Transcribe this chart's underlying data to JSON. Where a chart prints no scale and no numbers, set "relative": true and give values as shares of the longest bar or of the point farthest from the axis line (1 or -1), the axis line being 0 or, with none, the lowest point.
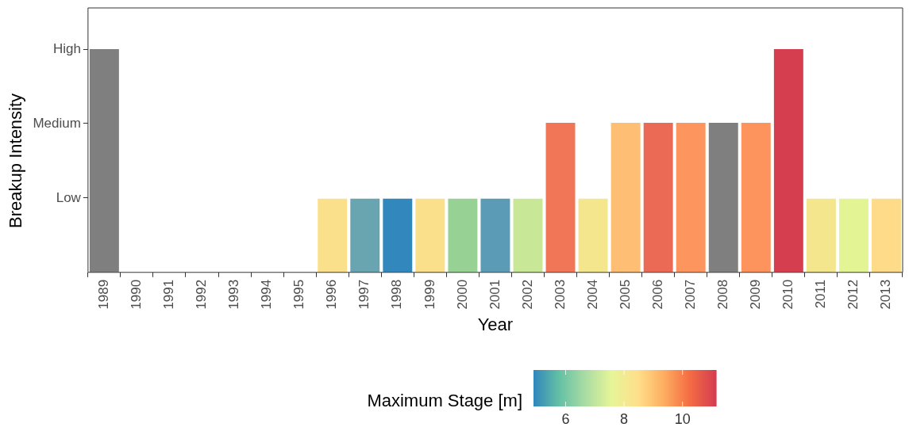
{
  "chart_data": {
    "type": "bar",
    "xlabel": "Year",
    "ylabel": "Breakup Intensity",
    "clabel": "Maximum Stage [m]",
    "categories": [
      "1989",
      "1990",
      "1991",
      "1992",
      "1993",
      "1994",
      "1995",
      "1996",
      "1997",
      "1998",
      "1999",
      "2000",
      "2001",
      "2002",
      "2003",
      "2004",
      "2005",
      "2006",
      "2007",
      "2008",
      "2009",
      "2010",
      "2011",
      "2012",
      "2013"
    ],
    "values": [
      1,
      null,
      null,
      null,
      null,
      null,
      null,
      0.33,
      0.33,
      0.33,
      0.33,
      0.33,
      0.33,
      0.33,
      0.67,
      0.33,
      0.67,
      0.67,
      0.67,
      0.67,
      0.67,
      1,
      0.33,
      0.33,
      0.33
    ],
    "relative": true,
    "y_categories": [
      "High",
      "Medium",
      "Low"
    ],
    "colors": [
      "#7f7f7f",
      null,
      null,
      null,
      null,
      null,
      null,
      "#fbe08b",
      "#69a5b0",
      "#3288bd",
      "#fbe08b",
      "#97d194",
      "#5b9bb5",
      "#c9e897",
      "#f07657",
      "#f3e68c",
      "#febe74",
      "#ea6a56",
      "#fd965e",
      "#7f7f7f",
      "#fd945d",
      "#d53e4f",
      "#f3e68c",
      "#e3f495",
      "#fddb88"
    ],
    "clim": [
      4.9,
      11.15
    ],
    "cticks": [
      6,
      8,
      10
    ],
    "grid": false
  }
}
